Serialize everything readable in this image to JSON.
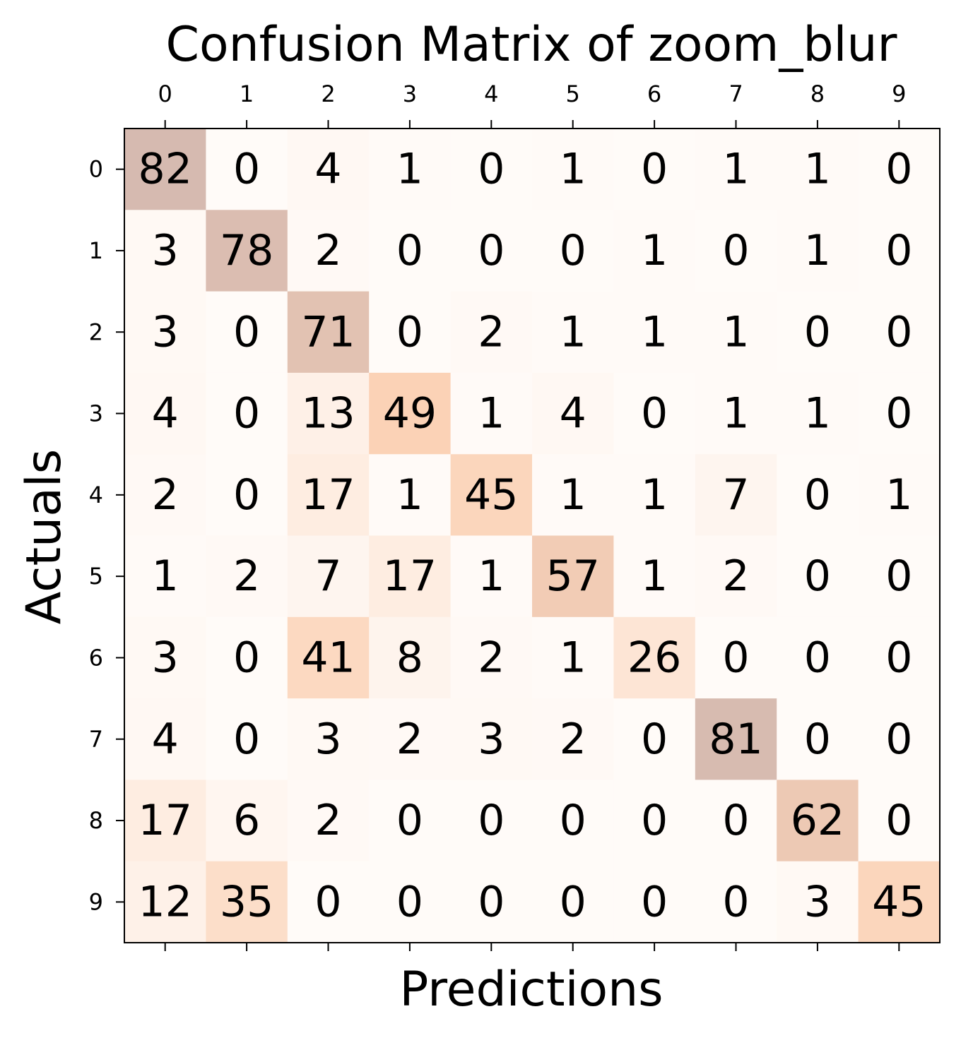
{
  "chart_data": {
    "type": "heatmap",
    "title": "Confusion Matrix of zoom_blur",
    "xlabel": "Predictions",
    "ylabel": "Actuals",
    "x_categories": [
      "0",
      "1",
      "2",
      "3",
      "4",
      "5",
      "6",
      "7",
      "8",
      "9"
    ],
    "y_categories": [
      "0",
      "1",
      "2",
      "3",
      "4",
      "5",
      "6",
      "7",
      "8",
      "9"
    ],
    "x_ticks_position": "top",
    "grid": false,
    "legend": "none",
    "matrix": [
      [
        82,
        0,
        4,
        1,
        0,
        1,
        0,
        1,
        1,
        0
      ],
      [
        3,
        78,
        2,
        0,
        0,
        0,
        1,
        0,
        1,
        0
      ],
      [
        3,
        0,
        71,
        0,
        2,
        1,
        1,
        1,
        0,
        0
      ],
      [
        4,
        0,
        13,
        49,
        1,
        4,
        0,
        1,
        1,
        0
      ],
      [
        2,
        0,
        17,
        1,
        45,
        1,
        1,
        7,
        0,
        1
      ],
      [
        1,
        2,
        7,
        17,
        1,
        57,
        1,
        2,
        0,
        0
      ],
      [
        3,
        0,
        41,
        8,
        2,
        1,
        26,
        0,
        0,
        0
      ],
      [
        4,
        0,
        3,
        2,
        3,
        2,
        0,
        81,
        0,
        0
      ],
      [
        17,
        6,
        2,
        0,
        0,
        0,
        0,
        0,
        62,
        0
      ],
      [
        12,
        35,
        0,
        0,
        0,
        0,
        0,
        0,
        3,
        45
      ]
    ],
    "colors": {
      "low": "#fffbf8",
      "mid": "#fbd2b6",
      "high": "#d6bab0",
      "axis": "#000000",
      "text": "#000000"
    }
  }
}
